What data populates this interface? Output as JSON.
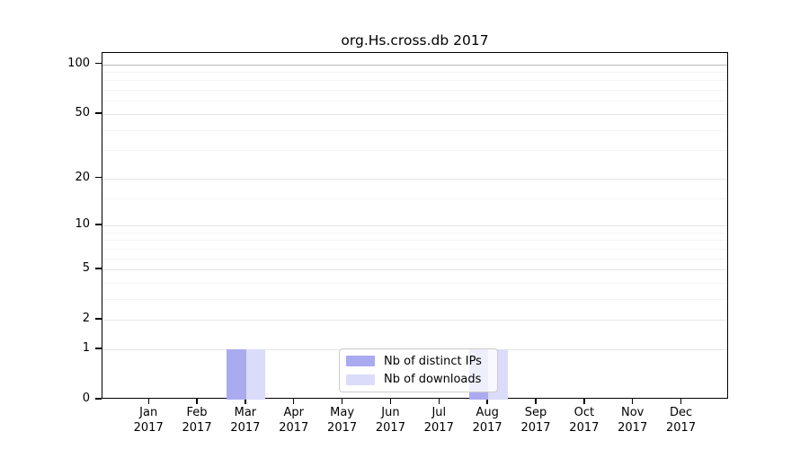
{
  "chart_data": {
    "type": "bar",
    "title": "org.Hs.cross.db 2017",
    "categories": [
      "Jan 2017",
      "Feb 2017",
      "Mar 2017",
      "Apr 2017",
      "May 2017",
      "Jun 2017",
      "Jul 2017",
      "Aug 2017",
      "Sep 2017",
      "Oct 2017",
      "Nov 2017",
      "Dec 2017"
    ],
    "series": [
      {
        "name": "Nb of distinct IPs",
        "color": "#aaaaf0",
        "values": [
          0,
          0,
          1,
          0,
          0,
          0,
          0,
          1,
          0,
          0,
          0,
          0
        ]
      },
      {
        "name": "Nb of downloads",
        "color": "#dbdbfa",
        "values": [
          0,
          0,
          1,
          0,
          0,
          0,
          0,
          1,
          0,
          0,
          0,
          0
        ]
      }
    ],
    "y_axis": {
      "scale": "log1p",
      "ticks": [
        0,
        1,
        2,
        5,
        10,
        20,
        50,
        100
      ],
      "minor_ticks": [
        3,
        4,
        6,
        7,
        8,
        9,
        15,
        30,
        40,
        60,
        70,
        80,
        90
      ],
      "range": [
        0,
        117
      ]
    },
    "grid": true,
    "legend_position": "lower center",
    "colors": {
      "grid_major": "#e6e6e6",
      "grid_top": "#b9b9b9",
      "grid_minor": "#f4f4f4",
      "axis": "#000000"
    }
  }
}
